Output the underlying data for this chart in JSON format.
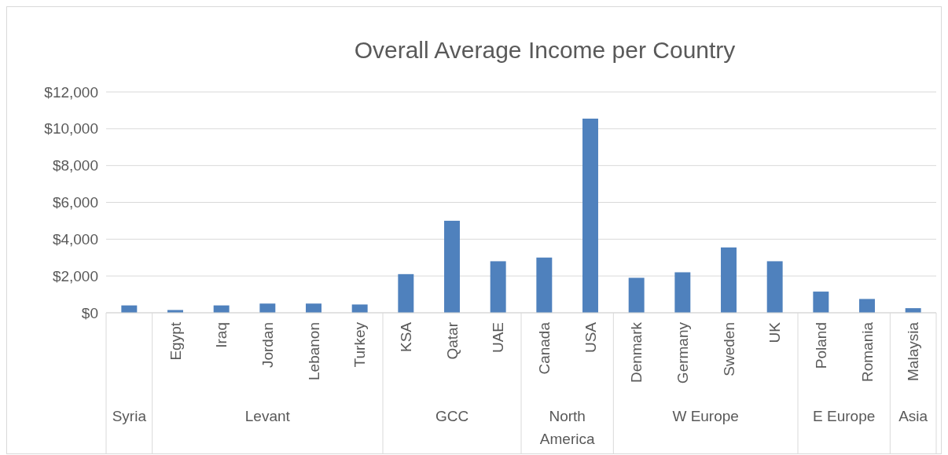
{
  "chart_data": {
    "type": "bar",
    "title": "Overall Average Income per Country",
    "categories": [
      null,
      "Egypt",
      "Iraq",
      "Jordan",
      "Lebanon",
      "Turkey",
      "KSA",
      "Qatar",
      "UAE",
      "Canada",
      "USA",
      "Denmark",
      "Germany",
      "Sweden",
      "UK",
      "Poland",
      "Romania",
      "Malaysia"
    ],
    "values": [
      400,
      150,
      400,
      500,
      500,
      450,
      2100,
      5000,
      2800,
      3000,
      10550,
      1900,
      2200,
      3550,
      2800,
      1150,
      750,
      250
    ],
    "color": "#4f81bd",
    "ylim": [
      0,
      12000
    ],
    "yticks": [
      {
        "value": 0,
        "label": "$0"
      },
      {
        "value": 2000,
        "label": "$2,000"
      },
      {
        "value": 4000,
        "label": "$4,000"
      },
      {
        "value": 6000,
        "label": "$6,000"
      },
      {
        "value": 8000,
        "label": "$8,000"
      },
      {
        "value": 10000,
        "label": "$10,000"
      },
      {
        "value": 12000,
        "label": "$12,000"
      }
    ],
    "grid": "y",
    "annotations": [
      "Syria",
      "Levant",
      "GCC",
      "North America",
      "W Europe",
      "E Europe",
      "Asia"
    ]
  }
}
